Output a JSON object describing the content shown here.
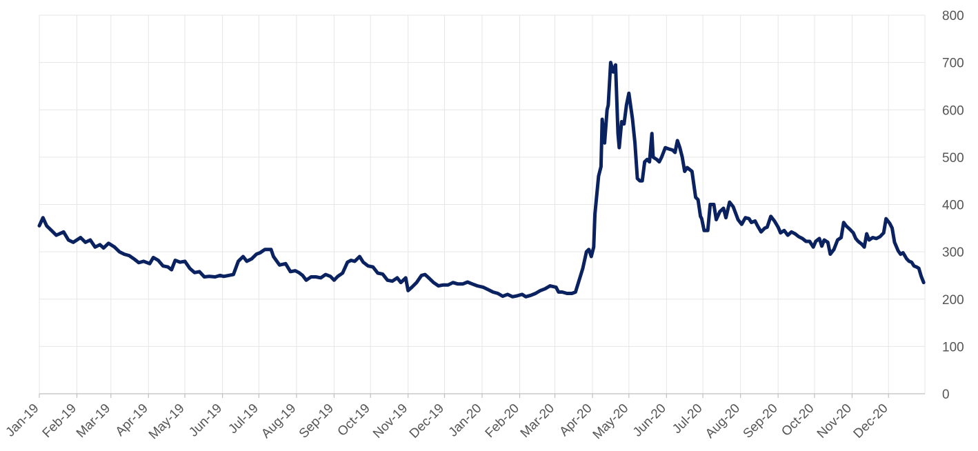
{
  "chart_data": {
    "type": "line",
    "title": "",
    "xlabel": "",
    "ylabel": "",
    "ylim": [
      0,
      800
    ],
    "yticks": [
      0,
      100,
      200,
      300,
      400,
      500,
      600,
      700,
      800
    ],
    "y_axis_position": "right",
    "grid": true,
    "legend": "none",
    "colors": {
      "line": "#0b2260",
      "grid": "#e6e6e6",
      "axis": "#bfbfbf",
      "text": "#555555"
    },
    "x_range": [
      "2019-01-01",
      "2020-12-31"
    ],
    "x_tick_labels": [
      "Jan-19",
      "Feb-19",
      "Mar-19",
      "Apr-19",
      "May-19",
      "Jun-19",
      "Jul-19",
      "Aug-19",
      "Sep-19",
      "Oct-19",
      "Nov-19",
      "Dec-19",
      "Jan-20",
      "Feb-20",
      "Mar-20",
      "Apr-20",
      "May-20",
      "Jun-20",
      "Jul-20",
      "Aug-20",
      "Sep-20",
      "Oct-20",
      "Nov-20",
      "Dec-20"
    ],
    "x_tick_dates": [
      "2019-01-01",
      "2019-02-01",
      "2019-03-01",
      "2019-04-01",
      "2019-05-01",
      "2019-06-01",
      "2019-07-01",
      "2019-08-01",
      "2019-09-01",
      "2019-10-01",
      "2019-11-01",
      "2019-12-01",
      "2020-01-01",
      "2020-02-01",
      "2020-03-01",
      "2020-04-01",
      "2020-05-01",
      "2020-06-01",
      "2020-07-01",
      "2020-08-01",
      "2020-09-01",
      "2020-10-01",
      "2020-11-01",
      "2020-12-01"
    ],
    "series": [
      {
        "points": [
          [
            "2019-01-01",
            355
          ],
          [
            "2019-01-04",
            372
          ],
          [
            "2019-01-07",
            355
          ],
          [
            "2019-01-11",
            345
          ],
          [
            "2019-01-15",
            335
          ],
          [
            "2019-01-21",
            342
          ],
          [
            "2019-01-25",
            325
          ],
          [
            "2019-01-29",
            320
          ],
          [
            "2019-02-04",
            330
          ],
          [
            "2019-02-08",
            320
          ],
          [
            "2019-02-12",
            325
          ],
          [
            "2019-02-16",
            310
          ],
          [
            "2019-02-20",
            315
          ],
          [
            "2019-02-23",
            308
          ],
          [
            "2019-02-27",
            318
          ],
          [
            "2019-03-04",
            310
          ],
          [
            "2019-03-08",
            300
          ],
          [
            "2019-03-12",
            295
          ],
          [
            "2019-03-16",
            292
          ],
          [
            "2019-03-20",
            285
          ],
          [
            "2019-03-24",
            277
          ],
          [
            "2019-03-28",
            280
          ],
          [
            "2019-04-02",
            275
          ],
          [
            "2019-04-05",
            288
          ],
          [
            "2019-04-09",
            282
          ],
          [
            "2019-04-13",
            270
          ],
          [
            "2019-04-17",
            268
          ],
          [
            "2019-04-20",
            262
          ],
          [
            "2019-04-23",
            282
          ],
          [
            "2019-04-27",
            278
          ],
          [
            "2019-05-01",
            280
          ],
          [
            "2019-05-05",
            265
          ],
          [
            "2019-05-09",
            256
          ],
          [
            "2019-05-13",
            258
          ],
          [
            "2019-05-17",
            247
          ],
          [
            "2019-05-21",
            248
          ],
          [
            "2019-05-26",
            247
          ],
          [
            "2019-05-30",
            250
          ],
          [
            "2019-06-02",
            248
          ],
          [
            "2019-06-06",
            250
          ],
          [
            "2019-06-10",
            252
          ],
          [
            "2019-06-14",
            280
          ],
          [
            "2019-06-18",
            290
          ],
          [
            "2019-06-21",
            280
          ],
          [
            "2019-06-25",
            285
          ],
          [
            "2019-06-29",
            295
          ],
          [
            "2019-07-02",
            298
          ],
          [
            "2019-07-06",
            305
          ],
          [
            "2019-07-11",
            305
          ],
          [
            "2019-07-13",
            290
          ],
          [
            "2019-07-18",
            272
          ],
          [
            "2019-07-23",
            275
          ],
          [
            "2019-07-27",
            258
          ],
          [
            "2019-07-31",
            260
          ],
          [
            "2019-08-03",
            256
          ],
          [
            "2019-08-06",
            250
          ],
          [
            "2019-08-09",
            240
          ],
          [
            "2019-08-13",
            247
          ],
          [
            "2019-08-17",
            247
          ],
          [
            "2019-08-21",
            245
          ],
          [
            "2019-08-25",
            252
          ],
          [
            "2019-08-29",
            248
          ],
          [
            "2019-09-01",
            240
          ],
          [
            "2019-09-04",
            248
          ],
          [
            "2019-09-08",
            255
          ],
          [
            "2019-09-12",
            278
          ],
          [
            "2019-09-15",
            282
          ],
          [
            "2019-09-18",
            280
          ],
          [
            "2019-09-22",
            290
          ],
          [
            "2019-09-25",
            278
          ],
          [
            "2019-09-29",
            270
          ],
          [
            "2019-10-03",
            268
          ],
          [
            "2019-10-07",
            255
          ],
          [
            "2019-10-11",
            253
          ],
          [
            "2019-10-15",
            240
          ],
          [
            "2019-10-19",
            238
          ],
          [
            "2019-10-23",
            245
          ],
          [
            "2019-10-26",
            235
          ],
          [
            "2019-10-30",
            245
          ],
          [
            "2019-11-01",
            218
          ],
          [
            "2019-11-04",
            225
          ],
          [
            "2019-11-08",
            235
          ],
          [
            "2019-11-12",
            250
          ],
          [
            "2019-11-15",
            252
          ],
          [
            "2019-11-18",
            245
          ],
          [
            "2019-11-22",
            235
          ],
          [
            "2019-11-26",
            228
          ],
          [
            "2019-11-30",
            230
          ],
          [
            "2019-12-04",
            230
          ],
          [
            "2019-12-08",
            235
          ],
          [
            "2019-12-12",
            232
          ],
          [
            "2019-12-16",
            232
          ],
          [
            "2019-12-20",
            236
          ],
          [
            "2019-12-24",
            232
          ],
          [
            "2019-12-28",
            228
          ],
          [
            "2020-01-02",
            225
          ],
          [
            "2020-01-06",
            220
          ],
          [
            "2020-01-10",
            215
          ],
          [
            "2020-01-14",
            212
          ],
          [
            "2020-01-18",
            206
          ],
          [
            "2020-01-22",
            210
          ],
          [
            "2020-01-26",
            205
          ],
          [
            "2020-01-30",
            207
          ],
          [
            "2020-02-03",
            210
          ],
          [
            "2020-02-06",
            205
          ],
          [
            "2020-02-10",
            208
          ],
          [
            "2020-02-14",
            212
          ],
          [
            "2020-02-18",
            218
          ],
          [
            "2020-02-22",
            222
          ],
          [
            "2020-02-26",
            228
          ],
          [
            "2020-03-02",
            225
          ],
          [
            "2020-03-04",
            215
          ],
          [
            "2020-03-07",
            215
          ],
          [
            "2020-03-11",
            212
          ],
          [
            "2020-03-15",
            212
          ],
          [
            "2020-03-18",
            215
          ],
          [
            "2020-03-21",
            240
          ],
          [
            "2020-03-24",
            265
          ],
          [
            "2020-03-27",
            300
          ],
          [
            "2020-03-29",
            305
          ],
          [
            "2020-03-31",
            290
          ],
          [
            "2020-04-02",
            310
          ],
          [
            "2020-04-03",
            380
          ],
          [
            "2020-04-06",
            460
          ],
          [
            "2020-04-08",
            480
          ],
          [
            "2020-04-09",
            580
          ],
          [
            "2020-04-11",
            530
          ],
          [
            "2020-04-13",
            600
          ],
          [
            "2020-04-14",
            610
          ],
          [
            "2020-04-16",
            700
          ],
          [
            "2020-04-18",
            680
          ],
          [
            "2020-04-20",
            695
          ],
          [
            "2020-04-22",
            550
          ],
          [
            "2020-04-23",
            520
          ],
          [
            "2020-04-25",
            575
          ],
          [
            "2020-04-27",
            570
          ],
          [
            "2020-04-29",
            610
          ],
          [
            "2020-05-01",
            635
          ],
          [
            "2020-05-04",
            580
          ],
          [
            "2020-05-06",
            530
          ],
          [
            "2020-05-08",
            455
          ],
          [
            "2020-05-10",
            450
          ],
          [
            "2020-05-12",
            450
          ],
          [
            "2020-05-14",
            490
          ],
          [
            "2020-05-16",
            495
          ],
          [
            "2020-05-18",
            490
          ],
          [
            "2020-05-20",
            550
          ],
          [
            "2020-05-21",
            500
          ],
          [
            "2020-05-24",
            495
          ],
          [
            "2020-05-26",
            490
          ],
          [
            "2020-05-28",
            500
          ],
          [
            "2020-05-31",
            520
          ],
          [
            "2020-06-02",
            518
          ],
          [
            "2020-06-06",
            515
          ],
          [
            "2020-06-08",
            510
          ],
          [
            "2020-06-10",
            535
          ],
          [
            "2020-06-12",
            520
          ],
          [
            "2020-06-14",
            500
          ],
          [
            "2020-06-16",
            470
          ],
          [
            "2020-06-18",
            478
          ],
          [
            "2020-06-22",
            470
          ],
          [
            "2020-06-25",
            415
          ],
          [
            "2020-06-27",
            410
          ],
          [
            "2020-06-29",
            375
          ],
          [
            "2020-06-30",
            370
          ],
          [
            "2020-07-02",
            345
          ],
          [
            "2020-07-05",
            345
          ],
          [
            "2020-07-07",
            400
          ],
          [
            "2020-07-10",
            400
          ],
          [
            "2020-07-12",
            368
          ],
          [
            "2020-07-15",
            385
          ],
          [
            "2020-07-18",
            392
          ],
          [
            "2020-07-20",
            372
          ],
          [
            "2020-07-23",
            405
          ],
          [
            "2020-07-26",
            395
          ],
          [
            "2020-07-30",
            368
          ],
          [
            "2020-08-02",
            358
          ],
          [
            "2020-08-05",
            372
          ],
          [
            "2020-08-08",
            370
          ],
          [
            "2020-08-10",
            362
          ],
          [
            "2020-08-13",
            365
          ],
          [
            "2020-08-15",
            355
          ],
          [
            "2020-08-18",
            342
          ],
          [
            "2020-08-21",
            350
          ],
          [
            "2020-08-23",
            352
          ],
          [
            "2020-08-26",
            375
          ],
          [
            "2020-08-29",
            365
          ],
          [
            "2020-09-01",
            352
          ],
          [
            "2020-09-03",
            340
          ],
          [
            "2020-09-06",
            345
          ],
          [
            "2020-09-09",
            335
          ],
          [
            "2020-09-12",
            342
          ],
          [
            "2020-09-15",
            338
          ],
          [
            "2020-09-18",
            332
          ],
          [
            "2020-09-21",
            328
          ],
          [
            "2020-09-24",
            322
          ],
          [
            "2020-09-27",
            322
          ],
          [
            "2020-09-30",
            310
          ],
          [
            "2020-10-02",
            322
          ],
          [
            "2020-10-05",
            328
          ],
          [
            "2020-10-07",
            312
          ],
          [
            "2020-10-09",
            325
          ],
          [
            "2020-10-12",
            320
          ],
          [
            "2020-10-14",
            295
          ],
          [
            "2020-10-17",
            305
          ],
          [
            "2020-10-20",
            325
          ],
          [
            "2020-10-23",
            330
          ],
          [
            "2020-10-25",
            362
          ],
          [
            "2020-10-27",
            355
          ],
          [
            "2020-10-30",
            348
          ],
          [
            "2020-11-02",
            340
          ],
          [
            "2020-11-04",
            328
          ],
          [
            "2020-11-06",
            322
          ],
          [
            "2020-11-09",
            316
          ],
          [
            "2020-11-11",
            310
          ],
          [
            "2020-11-13",
            338
          ],
          [
            "2020-11-15",
            325
          ],
          [
            "2020-11-18",
            330
          ],
          [
            "2020-11-21",
            328
          ],
          [
            "2020-11-24",
            332
          ],
          [
            "2020-11-27",
            340
          ],
          [
            "2020-11-29",
            370
          ],
          [
            "2020-12-02",
            360
          ],
          [
            "2020-12-04",
            350
          ],
          [
            "2020-12-06",
            320
          ],
          [
            "2020-12-09",
            302
          ],
          [
            "2020-12-11",
            295
          ],
          [
            "2020-12-13",
            298
          ],
          [
            "2020-12-16",
            285
          ],
          [
            "2020-12-18",
            280
          ],
          [
            "2020-12-20",
            278
          ],
          [
            "2020-12-22",
            270
          ],
          [
            "2020-12-24",
            268
          ],
          [
            "2020-12-26",
            265
          ],
          [
            "2020-12-28",
            248
          ],
          [
            "2020-12-30",
            235
          ]
        ]
      }
    ]
  }
}
